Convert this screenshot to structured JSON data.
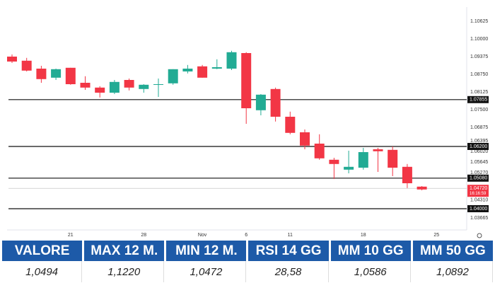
{
  "chart_data": {
    "type": "candlestick",
    "categories": [
      null,
      null,
      null,
      null,
      "21",
      null,
      null,
      null,
      null,
      "28",
      null,
      null,
      null,
      "Nov",
      null,
      null,
      "6",
      null,
      null,
      "11",
      null,
      null,
      null,
      null,
      "18",
      null,
      null,
      null,
      null,
      "25"
    ],
    "open": [
      1.09375,
      1.0923,
      1.0895,
      1.0863,
      1.0898,
      1.0845,
      1.0828,
      1.081,
      1.0855,
      1.0823,
      1.0838,
      1.0843,
      1.0885,
      1.0903,
      1.0895,
      1.0895,
      1.095,
      1.0748,
      1.0823,
      1.0725,
      1.067,
      1.063,
      1.0573,
      1.0538,
      1.0545,
      1.061,
      1.0608,
      1.0548,
      1.0478,
      null
    ],
    "high": [
      1.0945,
      1.0933,
      1.0905,
      1.0895,
      1.0898,
      1.0868,
      1.0833,
      1.0855,
      1.086,
      1.084,
      1.086,
      1.0893,
      1.0908,
      1.0908,
      1.0928,
      1.0958,
      1.0953,
      1.0805,
      1.0828,
      1.0743,
      1.068,
      1.0663,
      1.058,
      1.0605,
      1.0615,
      1.0615,
      1.062,
      1.0558,
      1.048,
      null
    ],
    "low": [
      1.0915,
      1.0885,
      1.0845,
      1.0855,
      1.0838,
      1.082,
      1.0793,
      1.0805,
      1.0818,
      1.081,
      1.0795,
      1.0838,
      1.0878,
      1.0863,
      1.0893,
      1.089,
      1.07,
      1.073,
      1.0708,
      1.0663,
      1.061,
      1.0573,
      1.0505,
      1.0525,
      1.0538,
      1.053,
      1.0515,
      1.0473,
      1.0465,
      null
    ],
    "close": [
      1.092,
      1.0888,
      1.0858,
      1.0893,
      1.084,
      1.0828,
      1.081,
      1.0848,
      1.0828,
      1.0838,
      1.084,
      1.0893,
      1.0895,
      1.0863,
      1.09,
      1.0953,
      1.0755,
      1.0803,
      1.0725,
      1.0668,
      1.0623,
      1.0578,
      1.0558,
      1.0548,
      1.06,
      1.0603,
      1.0545,
      1.049,
      1.0468,
      null
    ],
    "up_color": "#22ab94",
    "down_color": "#f23645",
    "ylim": [
      1.0325,
      1.10925
    ],
    "yticks": [
      1.10625,
      {
        "value": 1.1,
        "label": "1.10000"
      },
      1.09375,
      {
        "value": 1.0875,
        "label": "1.08750"
      },
      1.08125,
      {
        "value": 1.075,
        "label": "1.07500"
      },
      1.06875,
      1.06395,
      {
        "value": 1.0602,
        "label": "1.06020"
      },
      1.05645,
      {
        "value": 1.0527,
        "label": "1.05270"
      },
      {
        "value": 1.0431,
        "label": "1.04310"
      },
      1.03665
    ],
    "levels": [
      1.07855,
      {
        "value": 1.062,
        "label": "1.06200"
      },
      {
        "value": 1.0508,
        "label": "1.05080"
      },
      {
        "value": 1.04,
        "label": "1.04000"
      }
    ],
    "current_price": {
      "value": 1.0472,
      "label": "1.04720"
    },
    "countdown": "16:16:59"
  },
  "table": {
    "headers": [
      "VALORE",
      "MAX 12 M.",
      "MIN 12 M.",
      "RSI 14 GG",
      "MM 10 GG",
      "MM 50 GG"
    ],
    "rows": [
      [
        "1,0494",
        "1,1220",
        "1,0472",
        "28,58",
        "1,0586",
        "1,0892"
      ]
    ]
  }
}
